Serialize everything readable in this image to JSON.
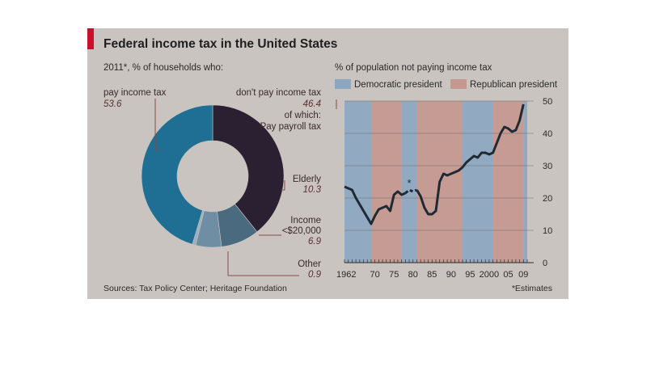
{
  "title": "Federal income tax in the United States",
  "sources": "Sources: Tax Policy Center; Heritage Foundation",
  "footnote": "*Estimates",
  "chart_data": [
    {
      "type": "pie",
      "subtitle": "2011*, % of households who:",
      "slices": [
        {
          "label": "don't pay income tax",
          "value": 46.4,
          "color": "#2a2032"
        },
        {
          "label": "Elderly",
          "value": 10.3,
          "color": "#4a6a80"
        },
        {
          "label": "Income <$20,000",
          "value": 6.9,
          "color": "#6f8da3"
        },
        {
          "label": "Other",
          "value": 0.9,
          "color": "#9ab0c0"
        },
        {
          "label": "pay income tax",
          "value": 53.6,
          "color": "#1f6f94"
        }
      ],
      "labels": {
        "pay": {
          "label": "pay income tax",
          "value": "53.6"
        },
        "dont": {
          "label": "don't pay income tax",
          "value": "46.4",
          "sub": "of which:",
          "payroll": "Pay payroll tax"
        },
        "elderly": {
          "label": "Elderly",
          "value": "10.3"
        },
        "income": {
          "label1": "Income",
          "label2": "<$20,000",
          "value": "6.9"
        },
        "other": {
          "label": "Other",
          "value": "0.9"
        }
      }
    },
    {
      "type": "line",
      "subtitle": "% of population not paying income tax",
      "legend": [
        {
          "label": "Democratic president",
          "color": "#8ba7c2"
        },
        {
          "label": "Republican president",
          "color": "#c5978f"
        }
      ],
      "xlim": [
        1962,
        2010
      ],
      "ylim": [
        0,
        50
      ],
      "yticks": [
        0,
        10,
        20,
        30,
        40,
        50
      ],
      "xticks": [
        {
          "value": 1962,
          "label": "1962"
        },
        {
          "value": 1970,
          "label": "70"
        },
        {
          "value": 1975,
          "label": "75"
        },
        {
          "value": 1980,
          "label": "80"
        },
        {
          "value": 1985,
          "label": "85"
        },
        {
          "value": 1990,
          "label": "90"
        },
        {
          "value": 1995,
          "label": "95"
        },
        {
          "value": 2000,
          "label": "2000"
        },
        {
          "value": 2005,
          "label": "05"
        },
        {
          "value": 2009,
          "label": "09"
        }
      ],
      "eras": [
        {
          "start": 1962,
          "end": 1969,
          "party": "Democratic"
        },
        {
          "start": 1969,
          "end": 1977,
          "party": "Republican"
        },
        {
          "start": 1977,
          "end": 1981,
          "party": "Democratic"
        },
        {
          "start": 1981,
          "end": 1993,
          "party": "Republican"
        },
        {
          "start": 1993,
          "end": 2001,
          "party": "Democratic"
        },
        {
          "start": 2001,
          "end": 2009,
          "party": "Republican"
        },
        {
          "start": 2009,
          "end": 2010,
          "party": "Democratic"
        }
      ],
      "series_solid_1": [
        [
          1962,
          23.5
        ],
        [
          1963,
          23
        ],
        [
          1964,
          22.5
        ],
        [
          1965,
          20
        ],
        [
          1966,
          18
        ],
        [
          1967,
          16
        ],
        [
          1968,
          14
        ],
        [
          1969,
          12
        ],
        [
          1970,
          14.5
        ],
        [
          1971,
          16.5
        ],
        [
          1972,
          17
        ],
        [
          1973,
          17.5
        ],
        [
          1974,
          16
        ],
        [
          1975,
          21
        ],
        [
          1976,
          22
        ],
        [
          1977,
          21
        ],
        [
          1978,
          21.5
        ]
      ],
      "series_dashed": [
        [
          1978,
          21.5
        ],
        [
          1979,
          22.5
        ],
        [
          1980,
          22
        ],
        [
          1981,
          22.5
        ]
      ],
      "dashed_marker": "*",
      "series_solid_2": [
        [
          1981,
          22.5
        ],
        [
          1982,
          20.5
        ],
        [
          1983,
          17
        ],
        [
          1984,
          15
        ],
        [
          1985,
          15
        ],
        [
          1986,
          16
        ],
        [
          1987,
          25
        ],
        [
          1988,
          27.5
        ],
        [
          1989,
          27
        ],
        [
          1990,
          27.5
        ],
        [
          1991,
          28
        ],
        [
          1992,
          28.5
        ],
        [
          1993,
          29.5
        ],
        [
          1994,
          31
        ],
        [
          1995,
          32
        ],
        [
          1996,
          33
        ],
        [
          1997,
          32.5
        ],
        [
          1998,
          34
        ],
        [
          1999,
          34
        ],
        [
          2000,
          33.5
        ],
        [
          2001,
          34
        ],
        [
          2002,
          37
        ],
        [
          2003,
          40
        ],
        [
          2004,
          42
        ],
        [
          2005,
          41.5
        ],
        [
          2006,
          40.5
        ],
        [
          2007,
          41
        ],
        [
          2008,
          44
        ],
        [
          2009,
          49
        ]
      ]
    }
  ]
}
